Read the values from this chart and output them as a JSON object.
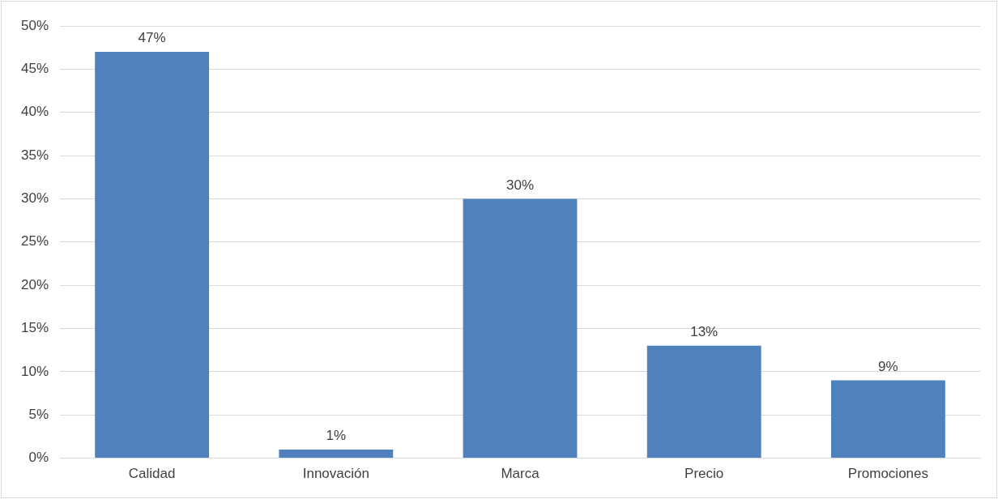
{
  "chart_data": {
    "type": "bar",
    "categories": [
      "Calidad",
      "Innovación",
      "Marca",
      "Precio",
      "Promociones"
    ],
    "values": [
      47,
      1,
      30,
      13,
      9
    ],
    "color": "#4f81bd",
    "value_labels": [
      "47%",
      "1%",
      "30%",
      "13%",
      "9%"
    ],
    "ylim": [
      0,
      50
    ],
    "yticks": [
      {
        "value": 0,
        "label": "0%"
      },
      {
        "value": 5,
        "label": "5%"
      },
      {
        "value": 10,
        "label": "10%"
      },
      {
        "value": 15,
        "label": "15%"
      },
      {
        "value": 20,
        "label": "20%"
      },
      {
        "value": 25,
        "label": "25%"
      },
      {
        "value": 30,
        "label": "30%"
      },
      {
        "value": 35,
        "label": "35%"
      },
      {
        "value": 40,
        "label": "40%"
      },
      {
        "value": 45,
        "label": "45%"
      },
      {
        "value": 50,
        "label": "50%"
      }
    ],
    "grid": "y",
    "legend": false
  }
}
